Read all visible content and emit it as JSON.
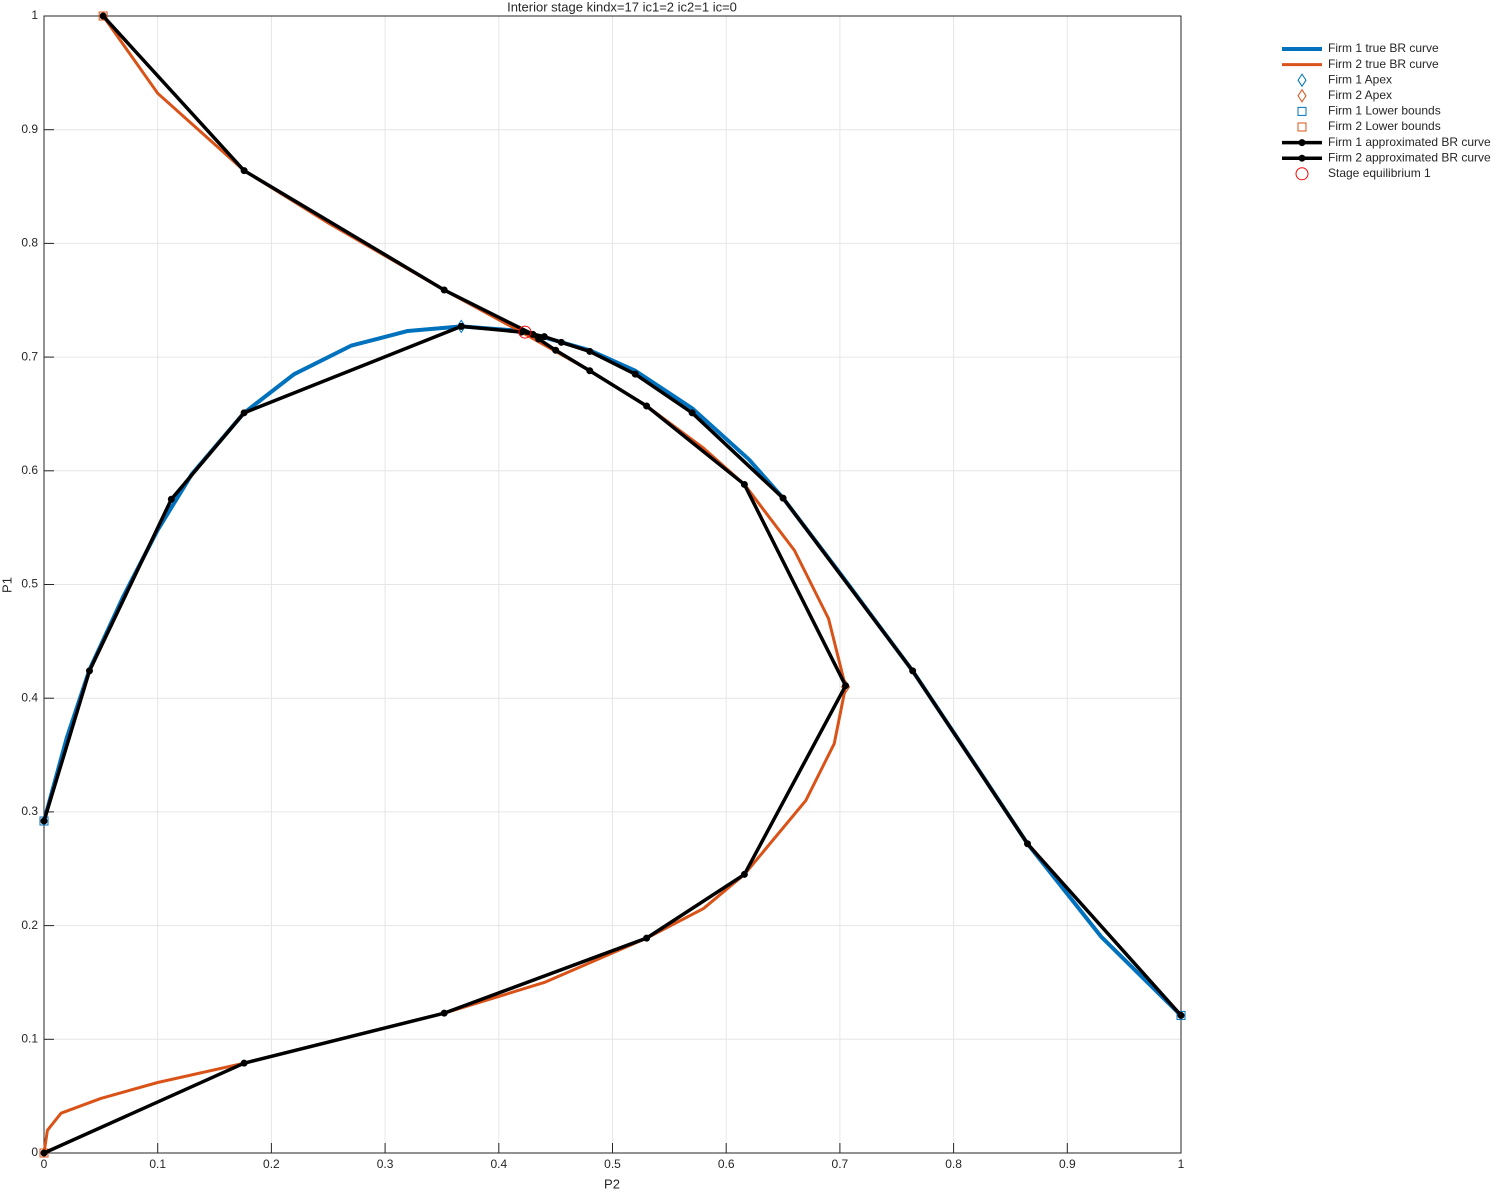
{
  "chart_data": {
    "type": "line",
    "title": "Interior stage kindx=17 ic1=2 ic2=1 ic=0",
    "x_label": "P2",
    "y_label": "P1",
    "xlim": [
      0,
      1
    ],
    "ylim": [
      0,
      1
    ],
    "xticks": [
      0,
      0.1,
      0.2,
      0.3,
      0.4,
      0.5,
      0.6,
      0.7,
      0.8,
      0.9,
      1
    ],
    "yticks": [
      0,
      0.1,
      0.2,
      0.3,
      0.4,
      0.5,
      0.6,
      0.7,
      0.8,
      0.9,
      1
    ],
    "grid": true,
    "legend": "outside-top-right",
    "series": [
      {
        "name": "Firm 1 true BR curve",
        "color": "#0072bd",
        "style": "line",
        "width": 4,
        "x": [
          0,
          0.02,
          0.04,
          0.07,
          0.1,
          0.13,
          0.176,
          0.22,
          0.27,
          0.32,
          0.367,
          0.42,
          0.48,
          0.52,
          0.57,
          0.62,
          0.65,
          0.7,
          0.764,
          0.82,
          0.865,
          0.93,
          1
        ],
        "values": [
          0.292,
          0.365,
          0.425,
          0.49,
          0.548,
          0.597,
          0.651,
          0.685,
          0.71,
          0.723,
          0.727,
          0.723,
          0.706,
          0.688,
          0.655,
          0.61,
          0.576,
          0.51,
          0.424,
          0.34,
          0.272,
          0.19,
          0.121
        ]
      },
      {
        "name": "Firm 2 true BR curve",
        "color": "#d95319",
        "style": "line",
        "width": 3,
        "x": [
          0.052,
          0.1,
          0.176,
          0.25,
          0.352,
          0.42,
          0.48,
          0.53,
          0.58,
          0.616,
          0.66,
          0.69,
          0.705,
          0.695,
          0.67,
          0.616,
          0.58,
          0.53,
          0.44,
          0.352,
          0.26,
          0.176,
          0.1,
          0.05,
          0.015,
          0.003,
          0
        ],
        "values": [
          1,
          0.932,
          0.864,
          0.818,
          0.759,
          0.722,
          0.688,
          0.657,
          0.62,
          0.588,
          0.53,
          0.47,
          0.41,
          0.36,
          0.31,
          0.245,
          0.215,
          0.189,
          0.15,
          0.123,
          0.1,
          0.079,
          0.062,
          0.048,
          0.035,
          0.02,
          0
        ]
      },
      {
        "name": "Firm 1 Apex",
        "color": "#0072bd",
        "style": "marker",
        "marker": "diamond",
        "x": [
          0.367
        ],
        "values": [
          0.727
        ]
      },
      {
        "name": "Firm 2 Apex",
        "color": "#d95319",
        "style": "marker",
        "marker": "diamond",
        "x": [
          0.705
        ],
        "values": [
          0.41
        ]
      },
      {
        "name": "Firm 1 Lower bounds",
        "color": "#0072bd",
        "style": "marker",
        "marker": "square",
        "x": [
          0,
          1
        ],
        "values": [
          0.292,
          0.121
        ]
      },
      {
        "name": "Firm 2 Lower bounds",
        "color": "#d95319",
        "style": "marker",
        "marker": "square",
        "x": [
          0.052,
          0
        ],
        "values": [
          1,
          0
        ]
      },
      {
        "name": "Firm 1 approximated BR curve",
        "color": "#000000",
        "style": "line-marker",
        "width": 3.5,
        "x": [
          0,
          0.04,
          0.112,
          0.176,
          0.367,
          0.42,
          0.44,
          0.455,
          0.48,
          0.52,
          0.57,
          0.65,
          0.764,
          0.865,
          1
        ],
        "values": [
          0.292,
          0.424,
          0.575,
          0.651,
          0.727,
          0.722,
          0.718,
          0.713,
          0.705,
          0.685,
          0.651,
          0.576,
          0.424,
          0.272,
          0.121
        ]
      },
      {
        "name": "Firm 2 approximated BR curve",
        "color": "#000000",
        "style": "line-marker",
        "width": 3.5,
        "x": [
          0.052,
          0.176,
          0.352,
          0.43,
          0.435,
          0.45,
          0.48,
          0.53,
          0.616,
          0.705,
          0.616,
          0.53,
          0.352,
          0.176,
          0
        ],
        "values": [
          1,
          0.864,
          0.759,
          0.72,
          0.716,
          0.706,
          0.688,
          0.657,
          0.588,
          0.411,
          0.245,
          0.189,
          0.123,
          0.079,
          0
        ]
      },
      {
        "name": "Stage equilibrium 1",
        "color": "#ff0000",
        "style": "marker",
        "marker": "circle",
        "x": [
          0.423
        ],
        "values": [
          0.722
        ]
      }
    ]
  }
}
